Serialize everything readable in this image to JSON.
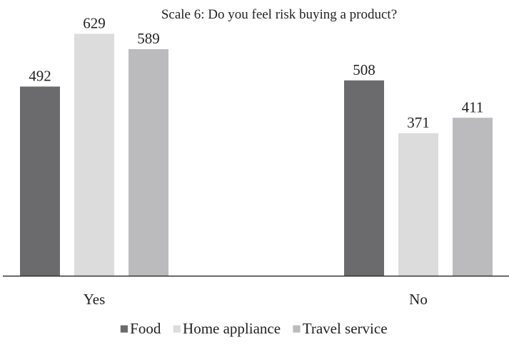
{
  "chart_data": {
    "type": "bar",
    "title": "Scale 6: Do you feel risk buying a product?",
    "xlabel": "",
    "ylabel": "",
    "categories": [
      "Yes",
      "No"
    ],
    "series": [
      {
        "name": "Food",
        "values": [
          492,
          508
        ],
        "color": "#6b6b6d"
      },
      {
        "name": "Home appliance",
        "values": [
          629,
          371
        ],
        "color": "#dcdcdd"
      },
      {
        "name": "Travel service",
        "values": [
          589,
          411
        ],
        "color": "#bbbbbd"
      }
    ],
    "ylim": [
      0,
      700
    ],
    "grid": false,
    "legend_position": "bottom",
    "legend_marker": "■"
  }
}
